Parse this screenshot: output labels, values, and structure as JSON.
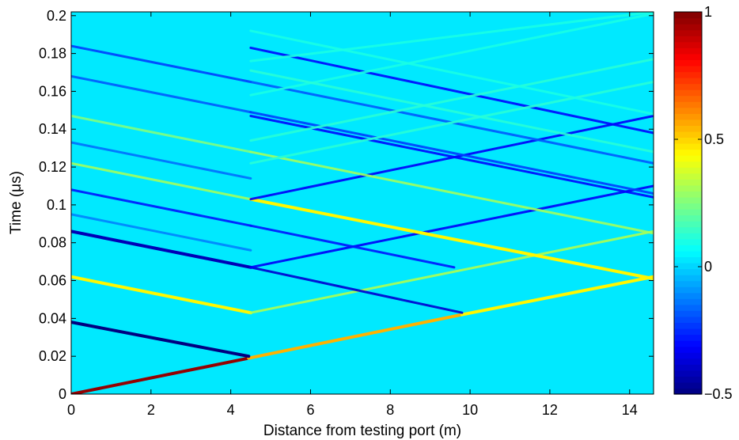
{
  "chart_data": {
    "type": "heatmap",
    "title": "",
    "xlabel": "Distance from testing port (m)",
    "ylabel": "Time (μs)",
    "xlim": [
      0,
      14.6
    ],
    "ylim": [
      0,
      0.202
    ],
    "x_ticks": [
      0,
      2,
      4,
      6,
      8,
      10,
      12,
      14
    ],
    "y_ticks": [
      0,
      0.02,
      0.04,
      0.06,
      0.08,
      0.1,
      0.12,
      0.14,
      0.16,
      0.18,
      0.2
    ],
    "x_tick_labels": [
      "0",
      "2",
      "4",
      "6",
      "8",
      "10",
      "12",
      "14"
    ],
    "y_tick_labels": [
      "0",
      "0.02",
      "0.04",
      "0.06",
      "0.08",
      "0.1",
      "0.12",
      "0.14",
      "0.16",
      "0.18",
      "0.2"
    ],
    "background_value": 0.03,
    "colorbar": {
      "range": [
        -0.5,
        1
      ],
      "ticks": [
        -0.5,
        0,
        0.5,
        1
      ],
      "tick_labels": [
        "−0.5",
        "0",
        "0.5",
        "1"
      ],
      "colormap": "jet"
    },
    "segments": [
      {
        "x": [
          0,
          4.45
        ],
        "y": [
          0,
          0.019
        ],
        "value": 0.97
      },
      {
        "x": [
          4.45,
          9.8
        ],
        "y": [
          0.019,
          0.042
        ],
        "value": 0.55
      },
      {
        "x": [
          9.8,
          14.6
        ],
        "y": [
          0.042,
          0.062
        ],
        "value": 0.45
      },
      {
        "x": [
          0,
          4.45
        ],
        "y": [
          0.038,
          0.02
        ],
        "value": -0.5
      },
      {
        "x": [
          0,
          4.5
        ],
        "y": [
          0.062,
          0.043
        ],
        "value": 0.45
      },
      {
        "x": [
          4.5,
          14.6
        ],
        "y": [
          0.043,
          0.086
        ],
        "value": 0.32
      },
      {
        "x": [
          0,
          4.5
        ],
        "y": [
          0.086,
          0.067
        ],
        "value": -0.42
      },
      {
        "x": [
          4.5,
          9.8
        ],
        "y": [
          0.067,
          0.043
        ],
        "value": -0.38
      },
      {
        "x": [
          4.5,
          14.6
        ],
        "y": [
          0.067,
          0.11
        ],
        "value": -0.32
      },
      {
        "x": [
          0,
          4.5
        ],
        "y": [
          0.108,
          0.089
        ],
        "value": -0.28
      },
      {
        "x": [
          4.5,
          9.6
        ],
        "y": [
          0.089,
          0.067
        ],
        "value": -0.28
      },
      {
        "x": [
          0,
          4.5
        ],
        "y": [
          0.122,
          0.103
        ],
        "value": 0.3
      },
      {
        "x": [
          4.5,
          14.6
        ],
        "y": [
          0.103,
          0.061
        ],
        "value": 0.45
      },
      {
        "x": [
          4.5,
          14.6
        ],
        "y": [
          0.103,
          0.147
        ],
        "value": -0.32
      },
      {
        "x": [
          0,
          4.5
        ],
        "y": [
          0.147,
          0.128
        ],
        "value": 0.25
      },
      {
        "x": [
          4.5,
          14.6
        ],
        "y": [
          0.128,
          0.085
        ],
        "value": 0.3
      },
      {
        "x": [
          4.5,
          14.6
        ],
        "y": [
          0.147,
          0.104
        ],
        "value": -0.3
      },
      {
        "x": [
          4.5,
          14.6
        ],
        "y": [
          0.183,
          0.138
        ],
        "value": -0.3
      },
      {
        "x": [
          0,
          4.5
        ],
        "y": [
          0.168,
          0.149
        ],
        "value": -0.18
      },
      {
        "x": [
          4.5,
          14.6
        ],
        "y": [
          0.149,
          0.106
        ],
        "value": -0.22
      },
      {
        "x": [
          0,
          4.5
        ],
        "y": [
          0.184,
          0.165
        ],
        "value": -0.22
      },
      {
        "x": [
          4.5,
          14.6
        ],
        "y": [
          0.165,
          0.122
        ],
        "value": -0.18
      },
      {
        "x": [
          0,
          4.5
        ],
        "y": [
          0.133,
          0.114
        ],
        "value": -0.15
      },
      {
        "x": [
          0,
          4.5
        ],
        "y": [
          0.095,
          0.076
        ],
        "value": -0.12
      },
      {
        "x": [
          4.5,
          14.6
        ],
        "y": [
          0.134,
          0.177
        ],
        "value": 0.12
      },
      {
        "x": [
          4.5,
          14.6
        ],
        "y": [
          0.122,
          0.165
        ],
        "value": 0.12
      },
      {
        "x": [
          4.5,
          14.6
        ],
        "y": [
          0.158,
          0.201
        ],
        "value": 0.1
      },
      {
        "x": [
          4.5,
          14.6
        ],
        "y": [
          0.176,
          0.202
        ],
        "value": 0.1
      },
      {
        "x": [
          4.5,
          14.6
        ],
        "y": [
          0.171,
          0.128
        ],
        "value": 0.12
      },
      {
        "x": [
          4.5,
          14.6
        ],
        "y": [
          0.192,
          0.148
        ],
        "value": 0.1
      }
    ]
  }
}
